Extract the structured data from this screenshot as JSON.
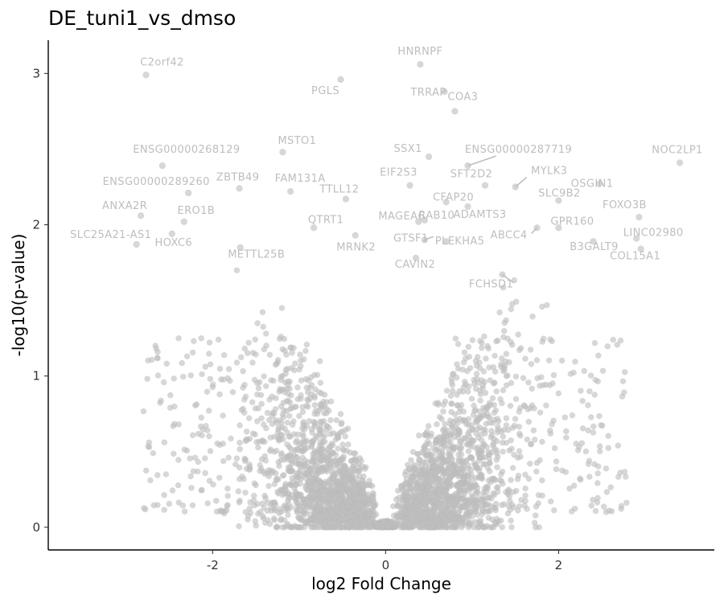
{
  "chart_data": {
    "type": "scatter",
    "title": "DE_tuni1_vs_dmso",
    "xlabel": "log2 Fold Change",
    "ylabel": "-log10(p-value)",
    "xlim": [
      -3.9,
      3.8
    ],
    "ylim": [
      -0.15,
      3.22
    ],
    "xticks": [
      -2,
      0,
      2
    ],
    "xtick_labels": [
      "-2",
      "0",
      "2"
    ],
    "yticks": [
      0,
      1,
      2,
      3
    ],
    "ytick_labels": [
      "0",
      "1",
      "2",
      "3"
    ],
    "grid": false,
    "legend": "none",
    "point_color": "#bebebe",
    "bulk_description_note_removed": true,
    "labeled_genes": [
      {
        "label": "HNRNPF",
        "x": 0.4,
        "y": 3.06
      },
      {
        "label": "C2orf42",
        "x": -2.77,
        "y": 2.99
      },
      {
        "label": "PGLS",
        "x": -0.52,
        "y": 2.96
      },
      {
        "label": "TRRAP",
        "x": 0.68,
        "y": 2.88
      },
      {
        "label": "COA3",
        "x": 0.8,
        "y": 2.75
      },
      {
        "label": "MSTO1",
        "x": -1.19,
        "y": 2.48
      },
      {
        "label": "SSX1",
        "x": 0.5,
        "y": 2.45
      },
      {
        "label": "ENSG00000287719",
        "x": 0.95,
        "y": 2.39
      },
      {
        "label": "NOC2LP1",
        "x": 3.4,
        "y": 2.41
      },
      {
        "label": "ENSG00000268129",
        "x": -2.58,
        "y": 2.39
      },
      {
        "label": "OSGIN1",
        "x": 2.47,
        "y": 2.27
      },
      {
        "label": "MYLK3",
        "x": 1.5,
        "y": 2.25
      },
      {
        "label": "EIF2S3",
        "x": 0.28,
        "y": 2.26
      },
      {
        "label": "ZBTB49",
        "x": -1.69,
        "y": 2.24
      },
      {
        "label": "SFT2D2",
        "x": 1.15,
        "y": 2.26
      },
      {
        "label": "ENSG00000289260",
        "x": -2.28,
        "y": 2.21
      },
      {
        "label": "FAM131A",
        "x": -1.1,
        "y": 2.22
      },
      {
        "label": "TTLL12",
        "x": -0.46,
        "y": 2.17
      },
      {
        "label": "CFAP20",
        "x": 0.7,
        "y": 2.15
      },
      {
        "label": "SLC9B2",
        "x": 2.0,
        "y": 2.16
      },
      {
        "label": "ANXA2R",
        "x": -2.83,
        "y": 2.06
      },
      {
        "label": "ERO1B",
        "x": -2.33,
        "y": 2.02
      },
      {
        "label": "FOXO3B",
        "x": 2.93,
        "y": 2.05
      },
      {
        "label": "ADAMTS3",
        "x": 0.95,
        "y": 2.12
      },
      {
        "label": "MAGEA6",
        "x": 0.38,
        "y": 2.02
      },
      {
        "label": "QTRT1",
        "x": -0.83,
        "y": 1.98
      },
      {
        "label": "RAB10",
        "x": 0.45,
        "y": 2.03
      },
      {
        "label": "ABCC4",
        "x": 1.75,
        "y": 1.98
      },
      {
        "label": "GPR160",
        "x": 2.0,
        "y": 1.98
      },
      {
        "label": "HOXC6",
        "x": -2.47,
        "y": 1.94
      },
      {
        "label": "LINC02980",
        "x": 2.9,
        "y": 1.91
      },
      {
        "label": "GTSF1",
        "x": 0.45,
        "y": 1.9
      },
      {
        "label": "SLC25A21-AS1",
        "x": -2.88,
        "y": 1.87
      },
      {
        "label": "MRNK2",
        "x": -0.35,
        "y": 1.93
      },
      {
        "label": "PLEKHA5",
        "x": 0.7,
        "y": 1.89
      },
      {
        "label": "B3GALT9",
        "x": 2.4,
        "y": 1.89
      },
      {
        "label": "METTL25B",
        "x": -1.68,
        "y": 1.85
      },
      {
        "label": "COL15A1",
        "x": 2.95,
        "y": 1.84
      },
      {
        "label": "CAVIN2",
        "x": 0.35,
        "y": 1.78
      },
      {
        "label": "FCHSD1",
        "x": 1.35,
        "y": 1.67
      }
    ]
  }
}
